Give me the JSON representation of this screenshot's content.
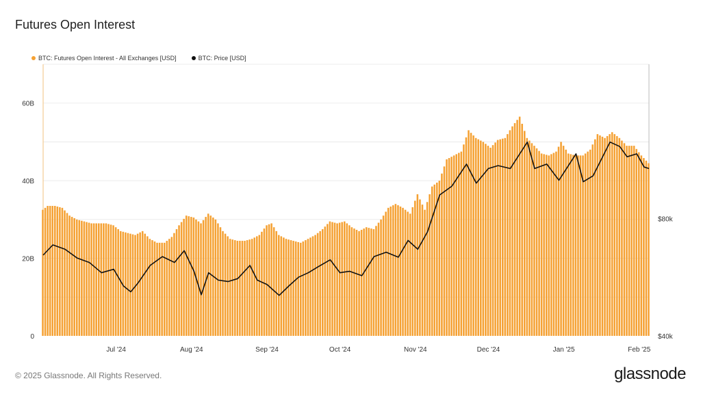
{
  "header": {
    "title": "Futures Open Interest"
  },
  "footer": {
    "copyright": "© 2025 Glassnode. All Rights Reserved.",
    "logo": "glassnode"
  },
  "colors": {
    "bars": "#f5a133",
    "price": "#111111",
    "grid": "#e6e6e6"
  },
  "chart_data": {
    "type": "bar",
    "legend_position": "top-left",
    "grid": true,
    "x_range": [
      "2024-06-01",
      "2025-02-05"
    ],
    "x_ticks": [
      {
        "label": "Jul '24",
        "date": "2024-07-01"
      },
      {
        "label": "Aug '24",
        "date": "2024-08-01"
      },
      {
        "label": "Sep '24",
        "date": "2024-09-01"
      },
      {
        "label": "Oct '24",
        "date": "2024-10-01"
      },
      {
        "label": "Nov '24",
        "date": "2024-11-01"
      },
      {
        "label": "Dec '24",
        "date": "2024-12-01"
      },
      {
        "label": "Jan '25",
        "date": "2025-01-01"
      },
      {
        "label": "Feb '25",
        "date": "2025-02-01"
      }
    ],
    "y_left": {
      "ticks": [
        "0",
        "20B",
        "40B",
        "60B"
      ],
      "tick_values": [
        0,
        20,
        40,
        60
      ],
      "range": [
        0,
        70
      ],
      "unit": "B USD"
    },
    "y_right": {
      "ticks": [
        "$40k",
        "$80k"
      ],
      "tick_values": [
        40000,
        80000
      ],
      "range": [
        40000,
        132500
      ],
      "scale": "linear"
    },
    "series": [
      {
        "name": "BTC: Futures Open Interest - All Exchanges [USD]",
        "kind": "bar",
        "axis": "left",
        "points": [
          [
            "2024-06-01",
            32.5
          ],
          [
            "2024-06-03",
            33.5
          ],
          [
            "2024-06-06",
            33.5
          ],
          [
            "2024-06-09",
            33
          ],
          [
            "2024-06-12",
            31
          ],
          [
            "2024-06-15",
            30
          ],
          [
            "2024-06-18",
            29.5
          ],
          [
            "2024-06-21",
            29
          ],
          [
            "2024-06-24",
            29
          ],
          [
            "2024-06-27",
            29
          ],
          [
            "2024-06-30",
            28.5
          ],
          [
            "2024-07-03",
            27
          ],
          [
            "2024-07-06",
            26.5
          ],
          [
            "2024-07-09",
            26
          ],
          [
            "2024-07-12",
            27
          ],
          [
            "2024-07-15",
            25
          ],
          [
            "2024-07-18",
            24
          ],
          [
            "2024-07-21",
            24
          ],
          [
            "2024-07-24",
            25.5
          ],
          [
            "2024-07-27",
            28.5
          ],
          [
            "2024-07-30",
            31
          ],
          [
            "2024-08-02",
            30.5
          ],
          [
            "2024-08-05",
            29
          ],
          [
            "2024-08-08",
            31.5
          ],
          [
            "2024-08-11",
            30
          ],
          [
            "2024-08-14",
            27
          ],
          [
            "2024-08-17",
            25
          ],
          [
            "2024-08-20",
            24.5
          ],
          [
            "2024-08-23",
            24.5
          ],
          [
            "2024-08-26",
            25
          ],
          [
            "2024-08-29",
            26
          ],
          [
            "2024-09-01",
            28.5
          ],
          [
            "2024-09-03",
            29
          ],
          [
            "2024-09-06",
            26
          ],
          [
            "2024-09-09",
            25
          ],
          [
            "2024-09-12",
            24.5
          ],
          [
            "2024-09-15",
            24
          ],
          [
            "2024-09-18",
            25
          ],
          [
            "2024-09-21",
            26
          ],
          [
            "2024-09-24",
            27.5
          ],
          [
            "2024-09-27",
            29.5
          ],
          [
            "2024-09-30",
            29
          ],
          [
            "2024-10-03",
            29.5
          ],
          [
            "2024-10-06",
            28
          ],
          [
            "2024-10-09",
            27
          ],
          [
            "2024-10-12",
            28
          ],
          [
            "2024-10-15",
            27.5
          ],
          [
            "2024-10-18",
            30
          ],
          [
            "2024-10-21",
            33
          ],
          [
            "2024-10-24",
            34
          ],
          [
            "2024-10-27",
            33
          ],
          [
            "2024-10-30",
            31.5
          ],
          [
            "2024-11-02",
            36.5
          ],
          [
            "2024-11-05",
            32.5
          ],
          [
            "2024-11-08",
            38.5
          ],
          [
            "2024-11-11",
            40
          ],
          [
            "2024-11-14",
            45.5
          ],
          [
            "2024-11-17",
            46.5
          ],
          [
            "2024-11-20",
            47.5
          ],
          [
            "2024-11-23",
            53
          ],
          [
            "2024-11-26",
            51
          ],
          [
            "2024-11-29",
            50
          ],
          [
            "2024-12-02",
            48.5
          ],
          [
            "2024-12-05",
            50.5
          ],
          [
            "2024-12-08",
            51
          ],
          [
            "2024-12-11",
            54
          ],
          [
            "2024-12-14",
            56.5
          ],
          [
            "2024-12-17",
            51
          ],
          [
            "2024-12-20",
            49
          ],
          [
            "2024-12-23",
            47
          ],
          [
            "2024-12-26",
            46.5
          ],
          [
            "2024-12-29",
            47.5
          ],
          [
            "2024-12-31",
            50
          ],
          [
            "2025-01-03",
            47
          ],
          [
            "2025-01-06",
            46.5
          ],
          [
            "2025-01-09",
            46.5
          ],
          [
            "2025-01-12",
            48
          ],
          [
            "2025-01-15",
            52
          ],
          [
            "2025-01-18",
            51
          ],
          [
            "2025-01-21",
            52.5
          ],
          [
            "2025-01-24",
            51
          ],
          [
            "2025-01-27",
            49
          ],
          [
            "2025-01-30",
            49
          ],
          [
            "2025-02-02",
            46.5
          ],
          [
            "2025-02-05",
            44.5
          ]
        ]
      },
      {
        "name": "BTC: Price [USD]",
        "kind": "line",
        "axis": "right",
        "points": [
          [
            "2024-06-01",
            67500
          ],
          [
            "2024-06-05",
            71000
          ],
          [
            "2024-06-10",
            69500
          ],
          [
            "2024-06-15",
            66500
          ],
          [
            "2024-06-20",
            65000
          ],
          [
            "2024-06-25",
            61500
          ],
          [
            "2024-06-30",
            62700
          ],
          [
            "2024-07-04",
            57000
          ],
          [
            "2024-07-07",
            55000
          ],
          [
            "2024-07-10",
            58000
          ],
          [
            "2024-07-15",
            64000
          ],
          [
            "2024-07-20",
            67000
          ],
          [
            "2024-07-25",
            65000
          ],
          [
            "2024-07-29",
            69000
          ],
          [
            "2024-08-02",
            62000
          ],
          [
            "2024-08-05",
            54000
          ],
          [
            "2024-08-08",
            61500
          ],
          [
            "2024-08-12",
            59000
          ],
          [
            "2024-08-16",
            58500
          ],
          [
            "2024-08-20",
            59500
          ],
          [
            "2024-08-25",
            64000
          ],
          [
            "2024-08-28",
            59000
          ],
          [
            "2024-09-01",
            57500
          ],
          [
            "2024-09-06",
            53800
          ],
          [
            "2024-09-10",
            57000
          ],
          [
            "2024-09-14",
            60000
          ],
          [
            "2024-09-18",
            61500
          ],
          [
            "2024-09-22",
            63500
          ],
          [
            "2024-09-27",
            65900
          ],
          [
            "2024-10-01",
            61500
          ],
          [
            "2024-10-05",
            62000
          ],
          [
            "2024-10-10",
            60500
          ],
          [
            "2024-10-15",
            67000
          ],
          [
            "2024-10-20",
            68500
          ],
          [
            "2024-10-25",
            66800
          ],
          [
            "2024-10-29",
            72500
          ],
          [
            "2024-11-02",
            69500
          ],
          [
            "2024-11-06",
            75500
          ],
          [
            "2024-11-11",
            88000
          ],
          [
            "2024-11-16",
            91000
          ],
          [
            "2024-11-22",
            98500
          ],
          [
            "2024-11-26",
            92000
          ],
          [
            "2024-12-01",
            97000
          ],
          [
            "2024-12-05",
            98000
          ],
          [
            "2024-12-10",
            97000
          ],
          [
            "2024-12-17",
            106000
          ],
          [
            "2024-12-20",
            97000
          ],
          [
            "2024-12-25",
            98500
          ],
          [
            "2024-12-30",
            93000
          ],
          [
            "2025-01-06",
            102000
          ],
          [
            "2025-01-09",
            92500
          ],
          [
            "2025-01-13",
            94500
          ],
          [
            "2025-01-20",
            106000
          ],
          [
            "2025-01-24",
            104500
          ],
          [
            "2025-01-27",
            101000
          ],
          [
            "2025-01-31",
            102000
          ],
          [
            "2025-02-03",
            97500
          ],
          [
            "2025-02-05",
            97000
          ]
        ]
      }
    ]
  }
}
